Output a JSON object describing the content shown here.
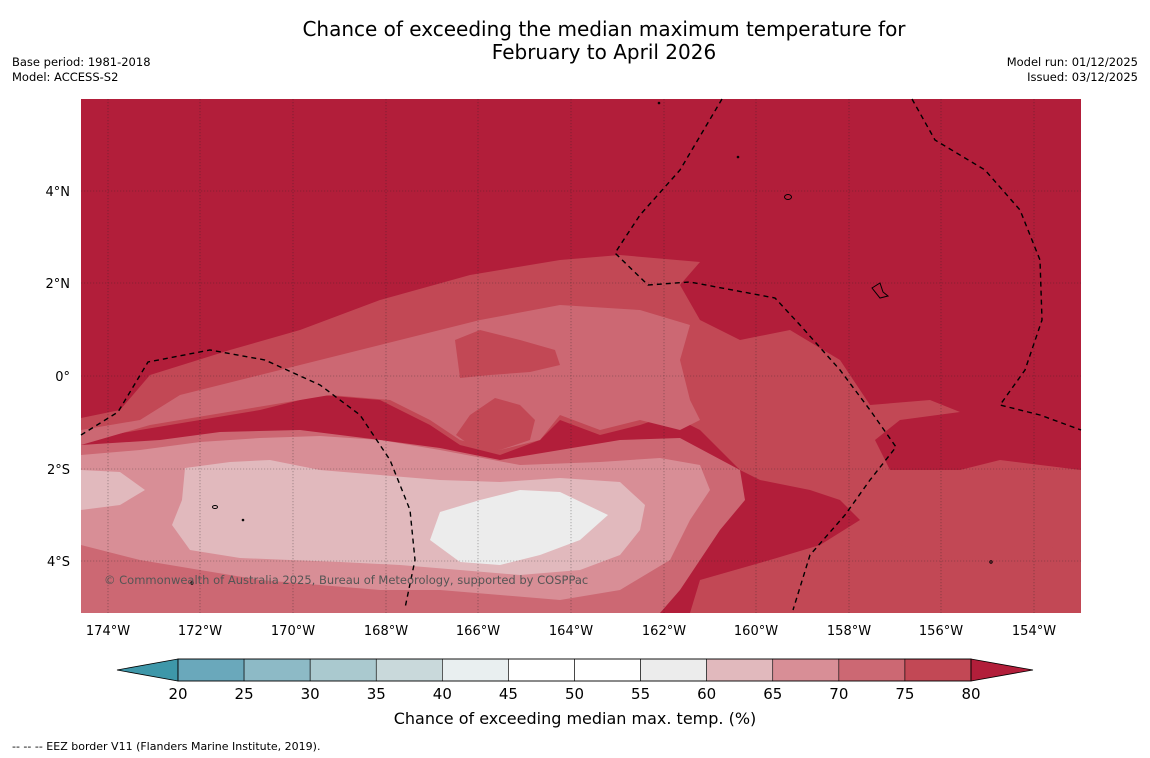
{
  "title": {
    "line1": "Chance of exceeding the median maximum temperature for",
    "line2": "February to April 2026"
  },
  "meta": {
    "base_period": "Base period: 1981-2018",
    "model": "Model: ACCESS-S2",
    "model_run": "Model run: 01/12/2025",
    "issued": "Issued: 03/12/2025"
  },
  "map": {
    "lon_labels": [
      "174°W",
      "172°W",
      "170°W",
      "168°W",
      "166°W",
      "164°W",
      "162°W",
      "160°W",
      "158°W",
      "156°W",
      "154°W"
    ],
    "lat_labels": [
      "4°N",
      "2°N",
      "0°",
      "2°S",
      "4°S"
    ],
    "copyright": "© Commonwealth of Australia 2025, Bureau of Meteorology, supported by COSPPac",
    "colors": {
      "c80": "#b21e3a",
      "c75": "#c24855",
      "c70": "#cc6873",
      "c65": "#d88e96",
      "c60": "#e1b9bd",
      "c55": "#ececec"
    }
  },
  "colorbar": {
    "ticks": [
      "20",
      "25",
      "30",
      "35",
      "40",
      "45",
      "50",
      "55",
      "60",
      "65",
      "70",
      "75",
      "80"
    ],
    "colors": [
      "#6aa8bb",
      "#8dbac6",
      "#aac9cf",
      "#c9d9db",
      "#e9eff0",
      "#ffffff",
      "#ffffff",
      "#ececec",
      "#e1b9bd",
      "#d88e96",
      "#cc6873",
      "#c24855"
    ],
    "low_color": "#3e97a9",
    "high_color": "#b21e3a",
    "label": "Chance of exceeding median max. temp. (%)"
  },
  "footnote": "--  --  -- EEZ border V11 (Flanders Marine Institute, 2019)."
}
